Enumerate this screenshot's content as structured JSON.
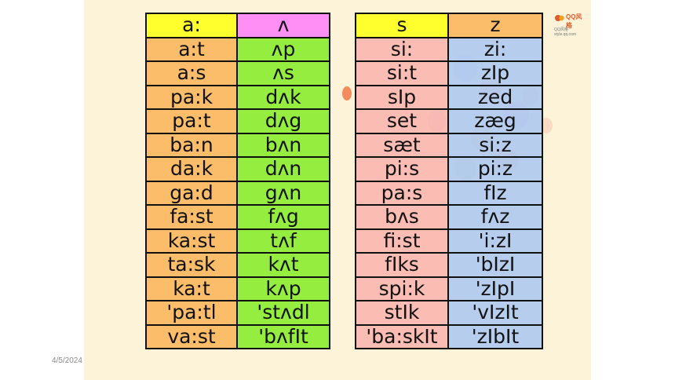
{
  "date": "4/5/2024",
  "logo": {
    "name": "QQ风格",
    "url": "QQ风格 style.qq.com"
  },
  "colors": {
    "slide_bg": "#fcf3d9",
    "orange": "#fbbd6a",
    "green": "#95ee3f",
    "yellow": "#ffff2e",
    "magenta": "#ff8ff4",
    "pink": "#fab7b0",
    "blue": "#b0c9ee"
  },
  "left_table": {
    "headers": [
      "a:",
      "ʌ"
    ],
    "rows": [
      [
        "a:t",
        "ʌp"
      ],
      [
        "a:s",
        "ʌs"
      ],
      [
        "pa:k",
        "dʌk"
      ],
      [
        "pa:t",
        "dʌg"
      ],
      [
        "ba:n",
        "bʌn"
      ],
      [
        "da:k",
        "dʌn"
      ],
      [
        "ga:d",
        "gʌn"
      ],
      [
        "fa:st",
        "fʌg"
      ],
      [
        "ka:st",
        "tʌf"
      ],
      [
        "ta:sk",
        "kʌt"
      ],
      [
        "ka:t",
        "kʌp"
      ],
      [
        "'pa:tl",
        "'stʌdl"
      ],
      [
        "va:st",
        "'bʌfIt"
      ]
    ]
  },
  "right_table": {
    "headers": [
      "s",
      "z"
    ],
    "rows": [
      [
        "si:",
        "zi:"
      ],
      [
        "si:t",
        "zIp"
      ],
      [
        "sIp",
        "zed"
      ],
      [
        "set",
        "zæg"
      ],
      [
        "sæt",
        "si:z"
      ],
      [
        "pi:s",
        "pi:z"
      ],
      [
        "pa:s",
        "fIz"
      ],
      [
        "bʌs",
        "fʌz"
      ],
      [
        "fi:st",
        "'i:zI"
      ],
      [
        "fIks",
        "'bIzI"
      ],
      [
        "spi:k",
        "'zIpI"
      ],
      [
        "stIk",
        "'vIzIt"
      ],
      [
        "'ba:skIt",
        "'zIbIt"
      ]
    ]
  }
}
